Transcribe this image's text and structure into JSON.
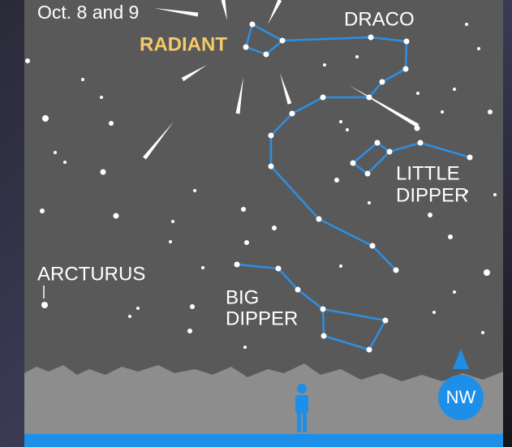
{
  "header": {
    "subtitle": "Oct. 8 and 9"
  },
  "labels": {
    "radiant": "RADIANT",
    "draco": "DRACO",
    "little_dipper": [
      "LITTLE",
      "DIPPER"
    ],
    "arcturus": "ARCTURUS",
    "big_dipper": [
      "BIG",
      "DIPPER"
    ],
    "compass": "NW"
  }
}
